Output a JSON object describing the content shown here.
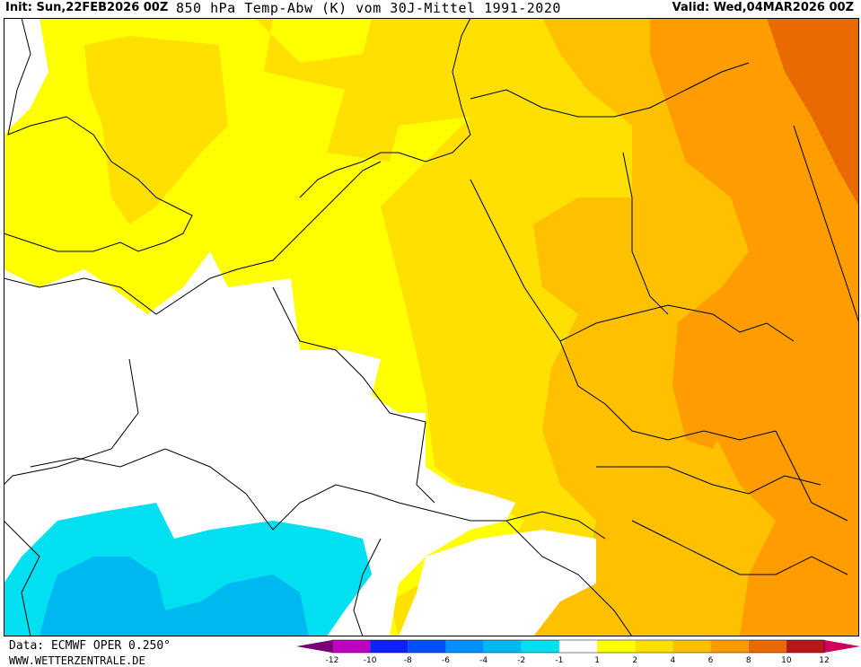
{
  "header": {
    "init_label": "Init: Sun,22FEB2026 00Z",
    "title": "850 hPa Temp-Abw (K) vom 30J-Mittel 1991-2020",
    "valid_label": "Valid: Wed,04MAR2026 00Z"
  },
  "footer": {
    "data_source": "Data: ECMWF OPER 0.250°",
    "website": "WWW.WETTERZENTRALE.DE"
  },
  "legend": {
    "ticks": [
      "-12",
      "-10",
      "-8",
      "-6",
      "-4",
      "-2",
      "-1",
      "1",
      "2",
      "4",
      "6",
      "8",
      "10",
      "12"
    ],
    "bins": [
      {
        "color": "#7a007a"
      },
      {
        "color": "#c000c0"
      },
      {
        "color": "#1020ff"
      },
      {
        "color": "#0050ff"
      },
      {
        "color": "#0090ff"
      },
      {
        "color": "#00b8f0"
      },
      {
        "color": "#00e0f0"
      },
      {
        "color": "#ffffff"
      },
      {
        "color": "#ffff00"
      },
      {
        "color": "#ffe000"
      },
      {
        "color": "#ffc000"
      },
      {
        "color": "#ff9c00"
      },
      {
        "color": "#e86a00"
      },
      {
        "color": "#b81818"
      },
      {
        "color": "#d0005a"
      }
    ]
  },
  "colors": {
    "anomaly_0": "#ffffff",
    "anomaly_1": "#ffff00",
    "anomaly_2": "#ffe000",
    "anomaly_3": "#ffc000",
    "anomaly_4": "#ff9c00",
    "anomaly_5": "#e86a00",
    "cold_1": "#00e0f0",
    "cold_2": "#00b8f0",
    "coastline": "#000000"
  }
}
